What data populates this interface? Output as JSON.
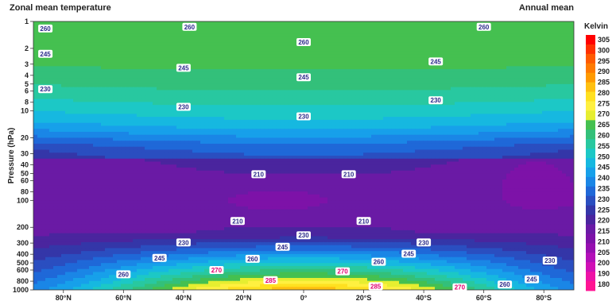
{
  "title": "Zonal mean temperature",
  "subtitle": "Annual mean",
  "colors": {
    "levels": [
      "#ff1493",
      "#ee12a6",
      "#d010b5",
      "#b30fb8",
      "#960fb0",
      "#7d12a8",
      "#6a1aa5",
      "#4a259e",
      "#3436a8",
      "#2a4ec0",
      "#1f68d8",
      "#1a86e6",
      "#17a0ea",
      "#16b8e0",
      "#1cc8c6",
      "#28c8a0",
      "#33c07a",
      "#45c050",
      "#e6ee30",
      "#fff040",
      "#ffe020",
      "#ffc010",
      "#ff9a00",
      "#ff7a00",
      "#ff5a00",
      "#ff3000",
      "#ff0000"
    ],
    "fill_style": "filled-contours"
  },
  "chart_data": {
    "type": "heatmap",
    "title": "Zonal mean temperature",
    "subtitle": "Annual mean",
    "xlabel": "",
    "ylabel": "Pressure (hPa)",
    "y_scale": "log",
    "y_inverted": true,
    "x_ticks": [
      "80°N",
      "60°N",
      "40°N",
      "20°N",
      "0°",
      "20°S",
      "40°S",
      "60°S",
      "80°S"
    ],
    "y_ticks": [
      "1",
      "2",
      "3",
      "4",
      "5",
      "6",
      "8",
      "10",
      "20",
      "30",
      "40",
      "50",
      "60",
      "80",
      "100",
      "200",
      "300",
      "400",
      "500",
      "600",
      "800",
      "1000"
    ],
    "colorbar": {
      "label": "Kelvin",
      "ticks": [
        "305",
        "300",
        "295",
        "290",
        "285",
        "280",
        "275",
        "270",
        "265",
        "260",
        "255",
        "250",
        "245",
        "240",
        "235",
        "230",
        "225",
        "220",
        "215",
        "210",
        "205",
        "200",
        "190",
        "180"
      ],
      "range": [
        180,
        305
      ]
    },
    "contour_labels": [
      {
        "text": "260",
        "lat": -86,
        "p": 1.2
      },
      {
        "text": "260",
        "lat": -38,
        "p": 1.15
      },
      {
        "text": "260",
        "lat": 0,
        "p": 1.7
      },
      {
        "text": "260",
        "lat": 60,
        "p": 1.15
      },
      {
        "text": "245",
        "lat": -86,
        "p": 2.3
      },
      {
        "text": "245",
        "lat": -40,
        "p": 3.3
      },
      {
        "text": "245",
        "lat": 0,
        "p": 4.2
      },
      {
        "text": "245",
        "lat": 44,
        "p": 2.8
      },
      {
        "text": "230",
        "lat": -86,
        "p": 5.7
      },
      {
        "text": "230",
        "lat": -40,
        "p": 9.0
      },
      {
        "text": "230",
        "lat": 0,
        "p": 11.5
      },
      {
        "text": "230",
        "lat": 44,
        "p": 7.6
      },
      {
        "text": "210",
        "lat": -15,
        "p": 51
      },
      {
        "text": "210",
        "lat": 15,
        "p": 51
      },
      {
        "text": "210",
        "lat": -22,
        "p": 170
      },
      {
        "text": "210",
        "lat": 20,
        "p": 170
      },
      {
        "text": "230",
        "lat": -40,
        "p": 295
      },
      {
        "text": "230",
        "lat": 0,
        "p": 245
      },
      {
        "text": "230",
        "lat": 40,
        "p": 295
      },
      {
        "text": "230",
        "lat": 82,
        "p": 470
      },
      {
        "text": "245",
        "lat": -48,
        "p": 440
      },
      {
        "text": "245",
        "lat": -7,
        "p": 330
      },
      {
        "text": "245",
        "lat": 35,
        "p": 395
      },
      {
        "text": "245",
        "lat": 76,
        "p": 760
      },
      {
        "text": "260",
        "lat": -60,
        "p": 670
      },
      {
        "text": "260",
        "lat": -17,
        "p": 450
      },
      {
        "text": "260",
        "lat": 25,
        "p": 485
      },
      {
        "text": "260",
        "lat": 67,
        "p": 870
      },
      {
        "text": "270",
        "lat": -29,
        "p": 600
      },
      {
        "text": "270",
        "lat": 13,
        "p": 620
      },
      {
        "text": "270",
        "lat": 52,
        "p": 935
      },
      {
        "text": "285",
        "lat": -11,
        "p": 780
      },
      {
        "text": "285",
        "lat": 24,
        "p": 910
      }
    ]
  }
}
